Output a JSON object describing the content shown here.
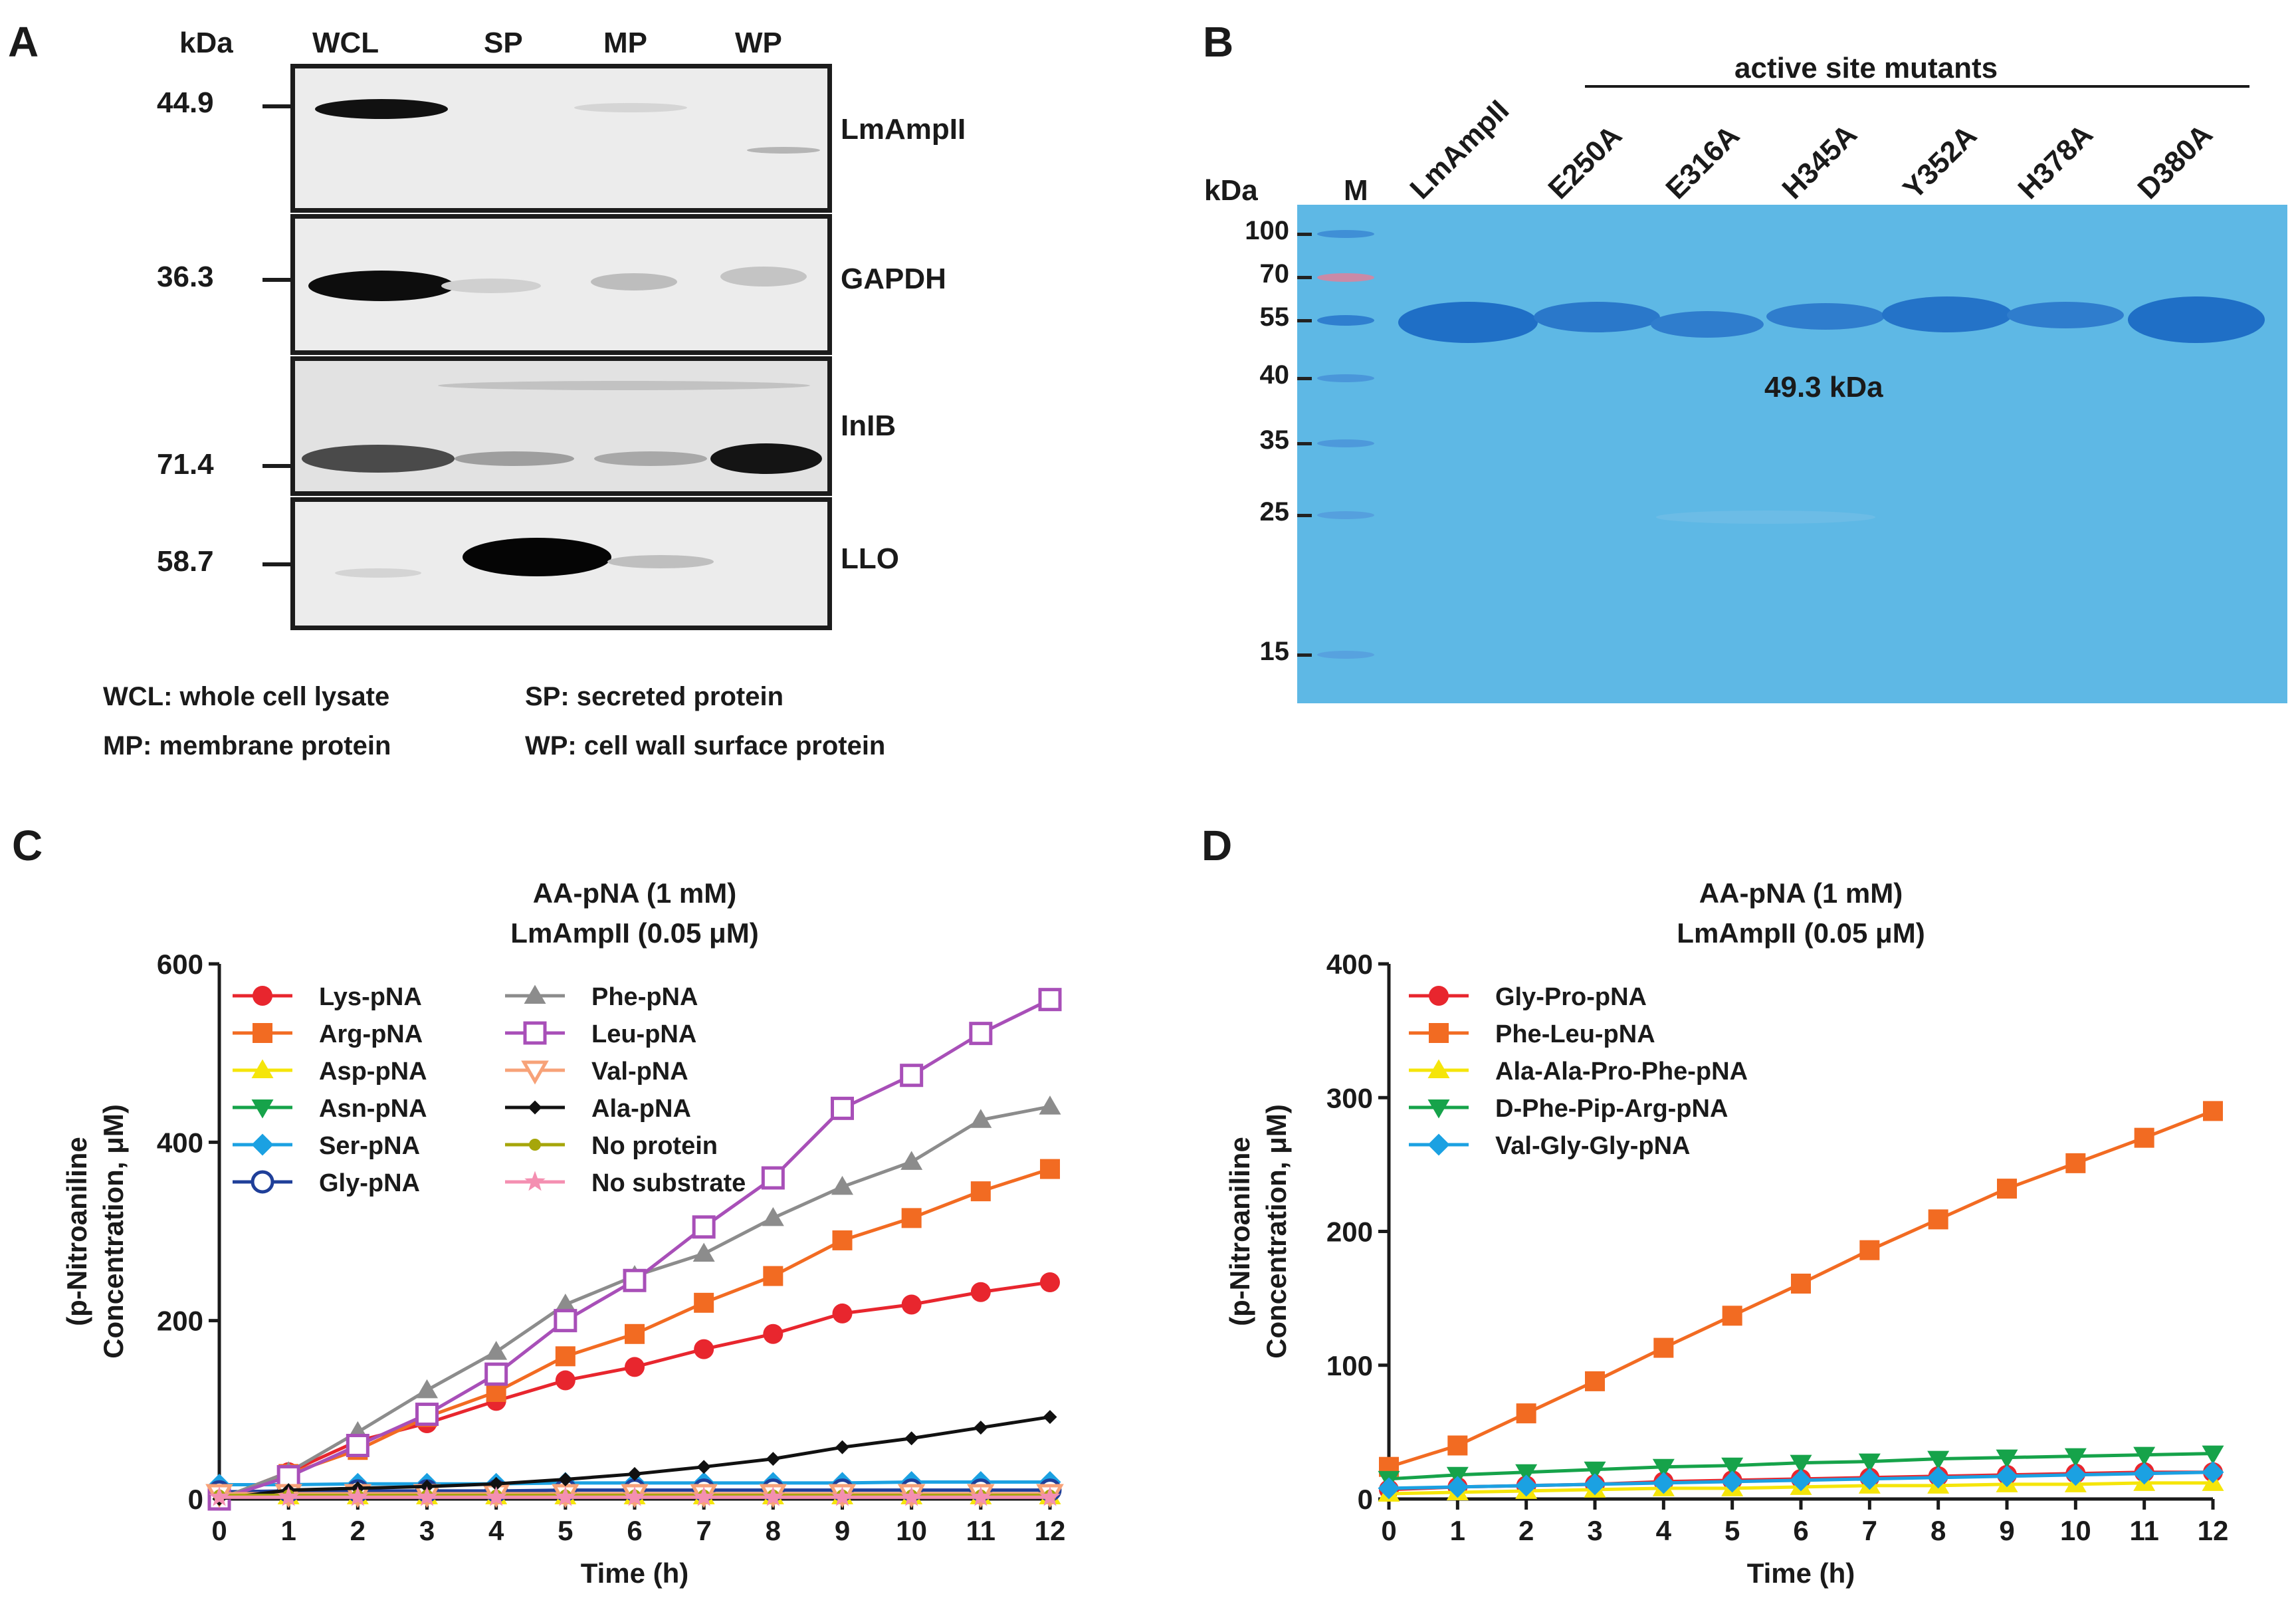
{
  "panel_a": {
    "letter": "A",
    "kda_header": "kDa",
    "lanes": [
      "WCL",
      "SP",
      "MP",
      "WP"
    ],
    "rows": [
      {
        "marker": "44.9",
        "protein": "LmAmpII"
      },
      {
        "marker": "36.3",
        "protein": "GAPDH"
      },
      {
        "marker": "71.4",
        "protein": "InIB"
      },
      {
        "marker": "58.7",
        "protein": "LLO"
      }
    ],
    "legend": [
      "WCL: whole cell lysate",
      "SP: secreted protein",
      "MP: membrane protein",
      "WP: cell wall surface protein"
    ]
  },
  "panel_b": {
    "letter": "B",
    "group_label": "active site mutants",
    "kda_header": "kDa",
    "marker_lane": "M",
    "lanes": [
      "LmAmpII",
      "E250A",
      "E316A",
      "H345A",
      "Y352A",
      "H378A",
      "D380A"
    ],
    "markers": [
      "100",
      "70",
      "55",
      "40",
      "35",
      "25",
      "15"
    ],
    "band_label": "49.3 kDa",
    "colors": {
      "gel": "#5eb8e5",
      "band": "#1f6fc6",
      "ladder_pink": "#c98aa7"
    }
  },
  "panel_c": {
    "letter": "C",
    "chart_data": {
      "type": "line",
      "title": "AA-pNA (1 mM)",
      "subtitle": "LmAmpII (0.05 μM)",
      "xlabel": "Time (h)",
      "ylabel_line1": "(p-Nitroaniline",
      "ylabel_line2": "Concentration, μM)",
      "xlim": [
        0,
        12
      ],
      "ylim": [
        0,
        600
      ],
      "xticks": [
        "0",
        "1",
        "2",
        "3",
        "4",
        "5",
        "6",
        "7",
        "8",
        "9",
        "10",
        "11",
        "12"
      ],
      "yticks": [
        "0",
        "200",
        "400",
        "600"
      ],
      "x": [
        0,
        1,
        2,
        3,
        4,
        5,
        6,
        7,
        8,
        9,
        10,
        11,
        12
      ],
      "series": [
        {
          "name": "Lys-pNA",
          "color": "#e8262e",
          "marker": "circle",
          "values": [
            0,
            30,
            65,
            85,
            110,
            133,
            148,
            168,
            185,
            208,
            218,
            232,
            243
          ]
        },
        {
          "name": "Arg-pNA",
          "color": "#f26b22",
          "marker": "square",
          "values": [
            0,
            28,
            55,
            92,
            120,
            160,
            185,
            220,
            250,
            290,
            315,
            345,
            370
          ]
        },
        {
          "name": "Asp-pNA",
          "color": "#f5e50a",
          "marker": "triangle-up",
          "values": [
            3,
            3,
            3,
            3,
            3,
            3,
            3,
            3,
            3,
            3,
            3,
            3,
            3
          ]
        },
        {
          "name": "Asn-pNA",
          "color": "#16a34a",
          "marker": "triangle-down",
          "values": [
            5,
            5,
            5,
            5,
            5,
            5,
            5,
            5,
            5,
            5,
            5,
            5,
            5
          ]
        },
        {
          "name": "Ser-pNA",
          "color": "#1ba1e2",
          "marker": "diamond",
          "values": [
            16,
            16,
            17,
            17,
            17,
            18,
            18,
            18,
            18,
            18,
            19,
            19,
            19
          ]
        },
        {
          "name": "Gly-pNA",
          "color": "#1f3f99",
          "marker": "circle-open",
          "values": [
            8,
            9,
            9,
            9,
            9,
            10,
            10,
            10,
            10,
            10,
            10,
            10,
            10
          ]
        },
        {
          "name": "Phe-pNA",
          "color": "#8c8c8c",
          "marker": "triangle-up",
          "values": [
            0,
            30,
            75,
            122,
            165,
            218,
            250,
            275,
            315,
            350,
            378,
            425,
            440
          ]
        },
        {
          "name": "Leu-pNA",
          "color": "#a84fb8",
          "marker": "square-open",
          "values": [
            0,
            25,
            60,
            95,
            140,
            200,
            245,
            305,
            360,
            438,
            475,
            522,
            560
          ]
        },
        {
          "name": "Val-pNA",
          "color": "#f7a278",
          "marker": "triangle-down-open",
          "values": [
            6,
            6,
            6,
            6,
            6,
            6,
            6,
            6,
            6,
            6,
            6,
            6,
            6
          ]
        },
        {
          "name": "Ala-pNA",
          "color": "#111111",
          "marker": "diamond-small",
          "values": [
            0,
            10,
            12,
            14,
            17,
            22,
            28,
            36,
            45,
            58,
            68,
            80,
            92
          ]
        },
        {
          "name": "No protein",
          "color": "#a6a60a",
          "marker": "circle-small",
          "values": [
            4,
            4,
            4,
            4,
            4,
            4,
            4,
            4,
            4,
            4,
            4,
            4,
            4
          ]
        },
        {
          "name": "No substrate",
          "color": "#f48fb1",
          "marker": "star",
          "values": [
            2,
            2,
            2,
            2,
            2,
            2,
            2,
            2,
            2,
            2,
            2,
            2,
            2
          ]
        }
      ]
    }
  },
  "panel_d": {
    "letter": "D",
    "chart_data": {
      "type": "line",
      "title": "AA-pNA (1 mM)",
      "subtitle": "LmAmpII (0.05 μM)",
      "xlabel": "Time (h)",
      "ylabel_line1": "(p-Nitroaniline",
      "ylabel_line2": "Concentration, μM)",
      "xlim": [
        0,
        12
      ],
      "ylim": [
        0,
        400
      ],
      "xticks": [
        "0",
        "1",
        "2",
        "3",
        "4",
        "5",
        "6",
        "7",
        "8",
        "9",
        "10",
        "11",
        "12"
      ],
      "yticks": [
        "0",
        "100",
        "200",
        "300",
        "400"
      ],
      "x": [
        0,
        1,
        2,
        3,
        4,
        5,
        6,
        7,
        8,
        9,
        10,
        11,
        12
      ],
      "series": [
        {
          "name": "Gly-Pro-pNA",
          "color": "#e8262e",
          "marker": "circle",
          "values": [
            7,
            9,
            10,
            11,
            13,
            14,
            15,
            16,
            17,
            18,
            19,
            20,
            20
          ]
        },
        {
          "name": "Phe-Leu-pNA",
          "color": "#f26b22",
          "marker": "square",
          "values": [
            24,
            40,
            64,
            88,
            113,
            137,
            161,
            186,
            209,
            232,
            251,
            270,
            290
          ]
        },
        {
          "name": "Ala-Ala-Pro-Phe-pNA",
          "color": "#f5e50a",
          "marker": "triangle-up",
          "values": [
            4,
            5,
            6,
            7,
            8,
            8,
            9,
            10,
            10,
            11,
            11,
            12,
            12
          ]
        },
        {
          "name": "D-Phe-Pip-Arg-pNA",
          "color": "#16a34a",
          "marker": "triangle-down",
          "values": [
            15,
            18,
            20,
            22,
            24,
            25,
            27,
            28,
            30,
            31,
            32,
            33,
            34
          ]
        },
        {
          "name": "Val-Gly-Gly-pNA",
          "color": "#1ba1e2",
          "marker": "diamond",
          "values": [
            8,
            9,
            10,
            11,
            12,
            13,
            14,
            15,
            16,
            17,
            18,
            19,
            20
          ]
        }
      ]
    }
  }
}
